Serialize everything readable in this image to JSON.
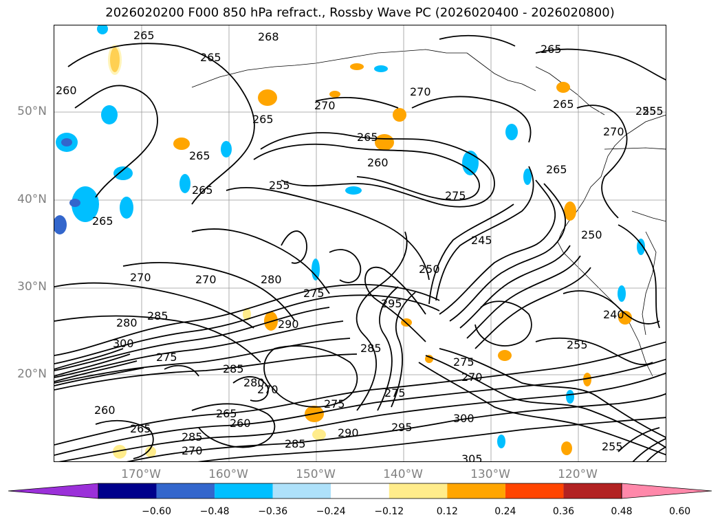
{
  "title": "2026020200 F000 850 hPa refract., Rossby Wave PC (2026020400 - 2026020800)",
  "lat_labels": [
    "50°N",
    "40°N",
    "30°N",
    "20°N"
  ],
  "lon_labels": [
    "170°W",
    "160°W",
    "150°W",
    "140°W",
    "130°W",
    "120°W"
  ],
  "colorbar": {
    "ticks": [
      "−0.60",
      "−0.48",
      "−0.36",
      "−0.24",
      "−0.12",
      "0.12",
      "0.24",
      "0.36",
      "0.48",
      "0.60"
    ],
    "colors": [
      "#9b30d9",
      "#00008b",
      "#3366cc",
      "#00bfff",
      "#aee1fa",
      "#ffffff",
      "#ffec8b",
      "#ffa500",
      "#ff4500",
      "#b22222",
      "#ff88aa"
    ]
  },
  "contour_labels": [
    {
      "text": "265"
    },
    {
      "text": "268"
    },
    {
      "text": "265"
    },
    {
      "text": "260"
    },
    {
      "text": "265"
    },
    {
      "text": "270"
    },
    {
      "text": "270"
    },
    {
      "text": "265"
    },
    {
      "text": "265"
    },
    {
      "text": "270"
    },
    {
      "text": "255"
    },
    {
      "text": "265"
    },
    {
      "text": "260"
    },
    {
      "text": "255"
    },
    {
      "text": "265"
    },
    {
      "text": "265"
    },
    {
      "text": "275"
    },
    {
      "text": "265"
    },
    {
      "text": "270"
    },
    {
      "text": "280"
    },
    {
      "text": "275"
    },
    {
      "text": "250"
    },
    {
      "text": "245"
    },
    {
      "text": "250"
    },
    {
      "text": "290"
    },
    {
      "text": "280"
    },
    {
      "text": "285"
    },
    {
      "text": "300"
    },
    {
      "text": "275"
    },
    {
      "text": "285"
    },
    {
      "text": "280"
    },
    {
      "text": "285"
    },
    {
      "text": "275"
    },
    {
      "text": "275"
    },
    {
      "text": "270"
    },
    {
      "text": "240"
    },
    {
      "text": "255"
    },
    {
      "text": "270"
    },
    {
      "text": "265"
    },
    {
      "text": "260"
    },
    {
      "text": "285"
    },
    {
      "text": "275"
    },
    {
      "text": "290"
    },
    {
      "text": "295"
    },
    {
      "text": "300"
    },
    {
      "text": "305"
    },
    {
      "text": "255"
    },
    {
      "text": "260"
    },
    {
      "text": "265"
    },
    {
      "text": "270"
    },
    {
      "text": "285"
    },
    {
      "text": "295"
    },
    {
      "text": "270"
    },
    {
      "text": "265"
    },
    {
      "text": "255"
    }
  ]
}
